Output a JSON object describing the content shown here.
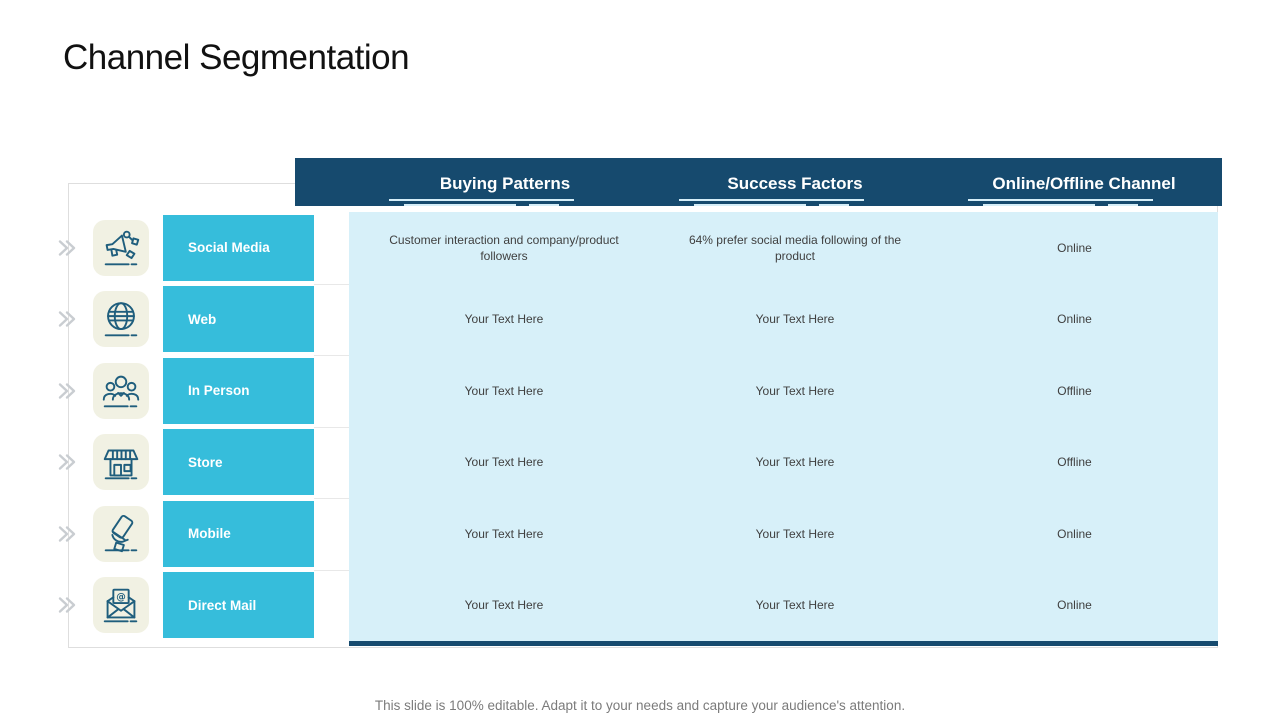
{
  "title": "Channel Segmentation",
  "footer": "This slide is 100% editable. Adapt it to your needs and capture your audience's attention.",
  "table": {
    "headers": [
      "Buying Patterns",
      "Success Factors",
      "Online/Offline Channel"
    ],
    "rows": [
      {
        "label": "Social Media",
        "icon": "social-media-marketing-icon",
        "cells": [
          "Customer interaction and company/product followers",
          "64% prefer social media following of the product",
          "Online"
        ]
      },
      {
        "label": "Web",
        "icon": "globe-icon",
        "cells": [
          "Your Text Here",
          "Your Text Here",
          "Online"
        ]
      },
      {
        "label": "In Person",
        "icon": "people-group-icon",
        "cells": [
          "Your Text Here",
          "Your Text Here",
          "Offline"
        ]
      },
      {
        "label": "Store",
        "icon": "storefront-icon",
        "cells": [
          "Your Text Here",
          "Your Text Here",
          "Offline"
        ]
      },
      {
        "label": "Mobile",
        "icon": "hand-holding-phone-icon",
        "cells": [
          "Your Text Here",
          "Your Text Here",
          "Online"
        ]
      },
      {
        "label": "Direct Mail",
        "icon": "envelope-email-icon",
        "cells": [
          "Your Text Here",
          "Your Text Here",
          "Online"
        ]
      }
    ]
  },
  "colors": {
    "header_navy": "#164A6E",
    "row_teal": "#36BDDB",
    "body_cyan": "#D7F0F9",
    "icon_tile": "#F1F1E3",
    "icon_stroke": "#1F5E7D",
    "footer_gray": "#7B7B7B",
    "body_text": "#3F3F3F",
    "underline": "#D6EEF8",
    "chevron": "#C9CDD1",
    "card_border": "#DEDEDE"
  }
}
